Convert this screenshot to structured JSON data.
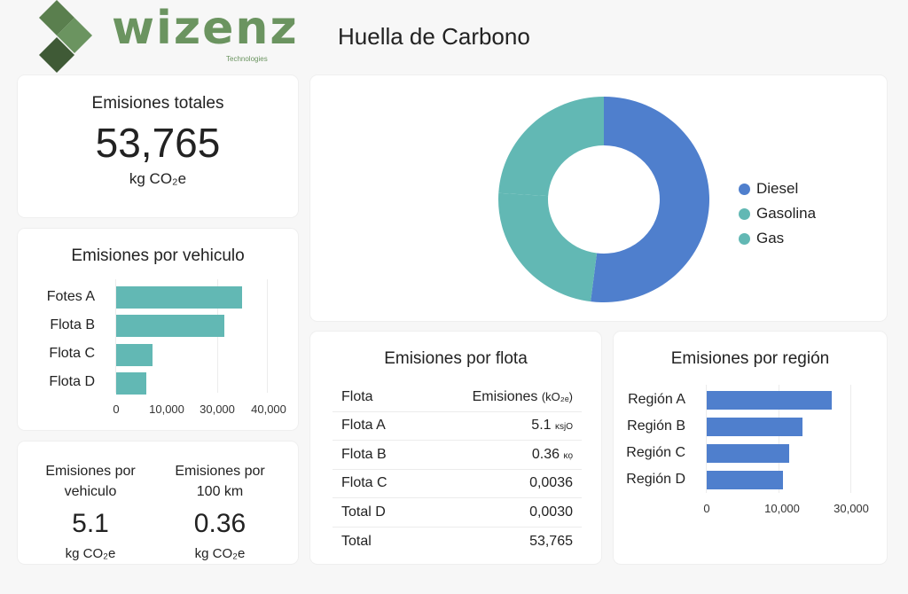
{
  "header": {
    "logo_text": "wizenz",
    "logo_subtext": "Technologies",
    "title": "Huella de Carbono",
    "brand_color": "#6b9460"
  },
  "total_card": {
    "title": "Emisiones totales",
    "value": "53,765",
    "unit": "kg CO₂e"
  },
  "kpis": [
    {
      "label_line1": "Emisiones por",
      "label_line2": "vehiculo",
      "value": "5.1",
      "unit": "kg CO₂e"
    },
    {
      "label_line1": "Emisiones por",
      "label_line2": "100 km",
      "value": "0.36",
      "unit": "kg CO₂e"
    }
  ],
  "fleet_table": {
    "title": "Emisiones por flota",
    "columns": [
      "Flota",
      "Emisiones (k",
      "O₂ₑ",
      ")"
    ],
    "header": {
      "col1": "Flota",
      "col2": "Emisiones",
      "col2_unit": "(kO₂ₑ)"
    },
    "rows": [
      {
        "name": "Flota A",
        "value": "5.1",
        "suffix": "ĸsjO"
      },
      {
        "name": "Flota B",
        "value": "0.36",
        "suffix": "ĸọ"
      },
      {
        "name": "Flota C",
        "value": "0,0036",
        "suffix": ""
      },
      {
        "name": "Total D",
        "value": "0,0030",
        "suffix": ""
      },
      {
        "name": "Total",
        "value": "53,765",
        "suffix": ""
      }
    ]
  },
  "colors": {
    "teal": "#62b8b4",
    "blue": "#4f7fcd"
  },
  "chart_data": [
    {
      "type": "pie",
      "title": "",
      "donut": true,
      "categories": [
        "Diesel",
        "Gasolina",
        "Gas"
      ],
      "values": [
        52,
        24,
        24
      ],
      "colors": [
        "#4f7fcd",
        "#62b8b4",
        "#62b8b4"
      ],
      "legend_position": "right"
    },
    {
      "type": "bar",
      "orientation": "horizontal",
      "title": "Emisiones por vehiculo",
      "categories": [
        "Fotes A",
        "Flota B",
        "Flota C",
        "Flota D"
      ],
      "values": [
        35000,
        30000,
        10000,
        8500
      ],
      "xticks": [
        "0",
        "10,000",
        "30,000",
        "40,000"
      ],
      "xlabel": "",
      "ylabel": "",
      "color": "#62b8b4",
      "grid": true
    },
    {
      "type": "bar",
      "orientation": "horizontal",
      "title": "Emisiones por región",
      "categories": [
        "Región A",
        "Región B",
        "Región C",
        "Región D"
      ],
      "values": [
        28000,
        21500,
        18500,
        17000
      ],
      "xticks": [
        "0",
        "10,000",
        "30,000"
      ],
      "xlabel": "",
      "ylabel": "",
      "color": "#4f7fcd",
      "grid": true
    }
  ]
}
